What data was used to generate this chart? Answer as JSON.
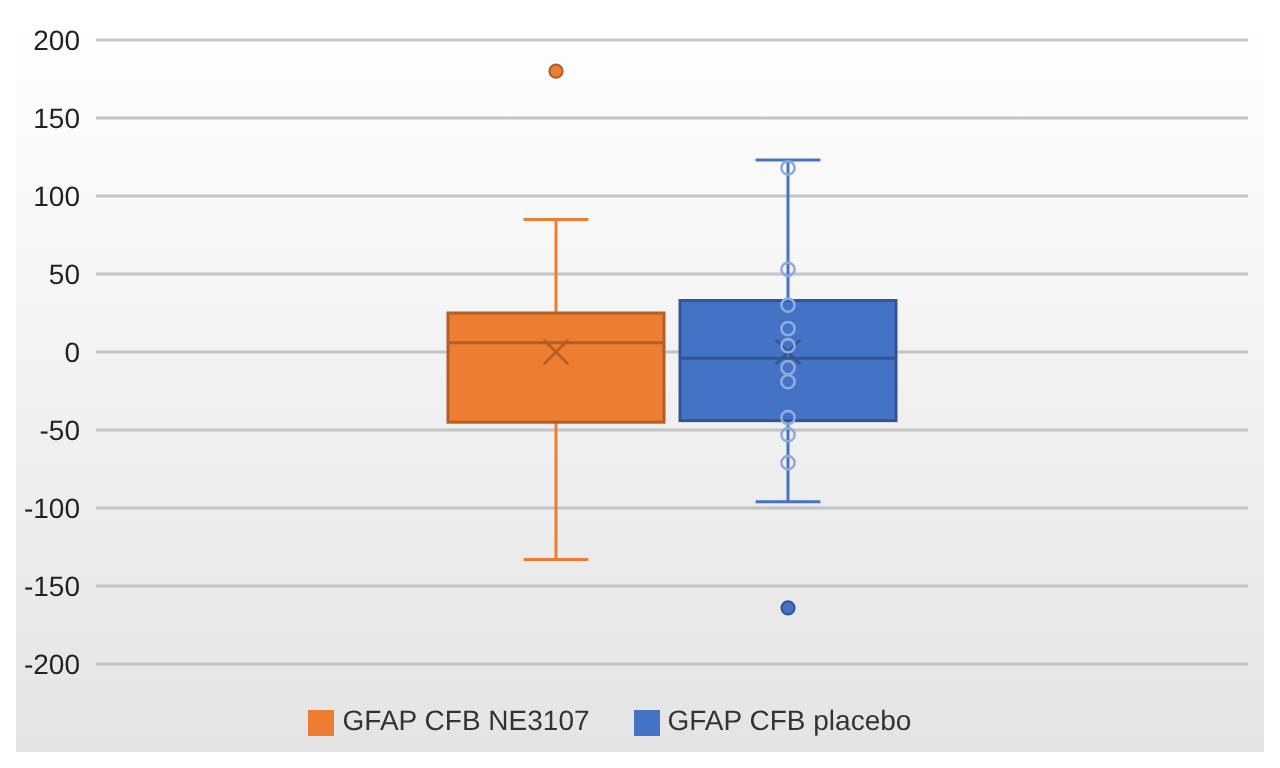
{
  "chart_data": {
    "type": "box",
    "categories": [
      null
    ],
    "series": [
      {
        "name": "GFAP CFB NE3107",
        "color": "#ed7d31",
        "boxes": [
          {
            "low": -133,
            "q1": -45,
            "median": 6,
            "q3": 25,
            "high": 85,
            "mean": 0,
            "outliers": [
              180
            ]
          }
        ]
      },
      {
        "name": "GFAP CFB placebo",
        "color": "#4472c4",
        "boxes": [
          {
            "low": -96,
            "q1": -44,
            "median": -4,
            "q3": 33,
            "high": 123,
            "mean": 0,
            "outliers": [
              -164
            ]
          }
        ]
      },
      {
        "type": "scatter",
        "color": "#8faadc",
        "x": [
          null,
          null,
          null,
          null,
          null,
          null,
          null,
          null,
          null,
          null
        ],
        "values": [
          118,
          53,
          30,
          15,
          4,
          -10,
          -19,
          -42,
          -53,
          -71
        ]
      }
    ],
    "ylim": [
      -200,
      200
    ],
    "yticks": [
      -200,
      -150,
      -100,
      -50,
      0,
      50,
      100,
      150,
      200
    ],
    "grid": "y",
    "legend": "bottom"
  }
}
